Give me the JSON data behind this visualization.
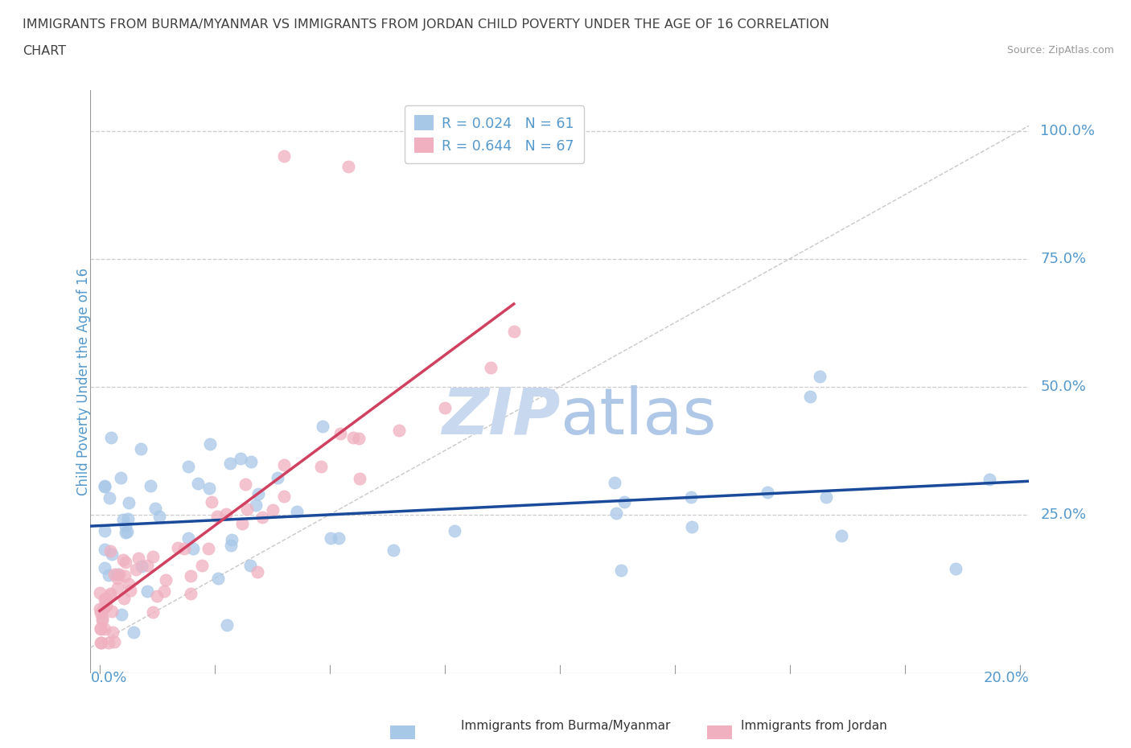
{
  "title_line1": "IMMIGRANTS FROM BURMA/MYANMAR VS IMMIGRANTS FROM JORDAN CHILD POVERTY UNDER THE AGE OF 16 CORRELATION",
  "title_line2": "CHART",
  "source": "Source: ZipAtlas.com",
  "ylabel": "Child Poverty Under the Age of 16",
  "ytick_labels": [
    "100.0%",
    "75.0%",
    "50.0%",
    "25.0%"
  ],
  "ytick_values": [
    1.0,
    0.75,
    0.5,
    0.25
  ],
  "xtick_labels": [
    "0.0%",
    "20.0%"
  ],
  "watermark_zip": "ZIP",
  "watermark_atlas": "atlas",
  "legend_r1": "R = 0.024   N = 61",
  "legend_r2": "R = 0.644   N = 67",
  "color_burma": "#a8c8e8",
  "color_jordan": "#f0b0c0",
  "color_burma_line": "#1a4a9a",
  "color_jordan_line": "#d04060",
  "color_diagonal": "#c8c8c8",
  "background": "#ffffff",
  "grid_color": "#cccccc",
  "title_color": "#404040",
  "axis_label_color": "#5599cc",
  "watermark_zip_color": "#c8d8ee",
  "watermark_atlas_color": "#b0c8e8",
  "tick_color": "#999999",
  "seed": 7,
  "n_burma": 61,
  "n_jordan": 67
}
